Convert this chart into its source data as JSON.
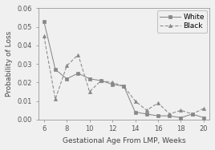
{
  "white_x": [
    6,
    7,
    8,
    9,
    10,
    11,
    12,
    13,
    14,
    15,
    16,
    17,
    18,
    19,
    20
  ],
  "white_y": [
    0.053,
    0.027,
    0.022,
    0.025,
    0.022,
    0.021,
    0.019,
    0.018,
    0.004,
    0.003,
    0.002,
    0.002,
    0.001,
    0.003,
    0.001
  ],
  "black_x": [
    6,
    7,
    8,
    9,
    10,
    11,
    12,
    13,
    14,
    15,
    16,
    17,
    18,
    19,
    20
  ],
  "black_y": [
    0.045,
    0.011,
    0.029,
    0.035,
    0.015,
    0.021,
    0.02,
    0.018,
    0.01,
    0.005,
    0.009,
    0.003,
    0.005,
    0.003,
    0.006
  ],
  "xlabel": "Gestational Age From LMP, Weeks",
  "ylabel": "Probability of Loss",
  "ylim": [
    0.0,
    0.06
  ],
  "xlim": [
    5.5,
    20.5
  ],
  "yticks": [
    0.0,
    0.01,
    0.02,
    0.03,
    0.04,
    0.05,
    0.06
  ],
  "xticks": [
    6,
    8,
    10,
    12,
    14,
    16,
    18,
    20
  ],
  "white_label": "White",
  "black_label": "Black",
  "line_color": "#888888",
  "background_color": "#f0f0f0",
  "label_fontsize": 6.5,
  "tick_fontsize": 6.0,
  "legend_fontsize": 6.5
}
